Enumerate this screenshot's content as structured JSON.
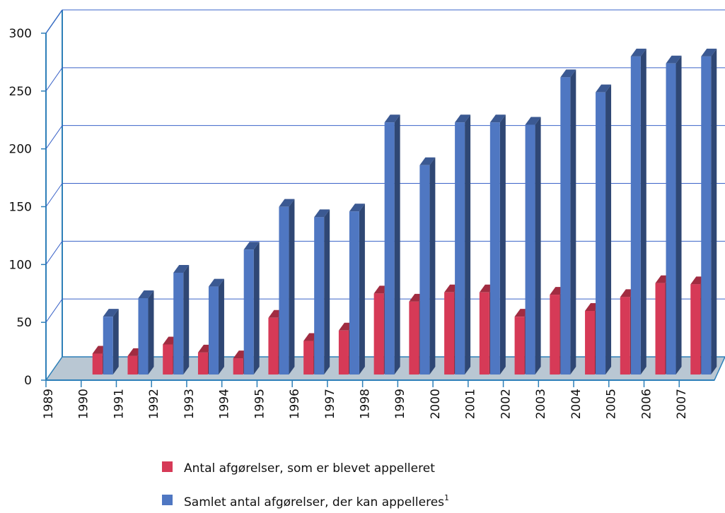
{
  "chart_data": {
    "type": "bar3d",
    "categories": [
      "1989",
      "1990",
      "1991",
      "1992",
      "1993",
      "1994",
      "1995",
      "1996",
      "1997",
      "1998",
      "1999",
      "2000",
      "2001",
      "2002",
      "2003",
      "2004",
      "2005",
      "2006",
      "2007"
    ],
    "series": [
      {
        "name": "Antal afgørelser, som er blevet appelleret",
        "color": "#d63a57",
        "values": [
          null,
          18,
          16,
          26,
          19,
          14,
          49,
          29,
          38,
          70,
          63,
          71,
          71,
          50,
          69,
          55,
          67,
          79,
          78
        ]
      },
      {
        "name": "Samlet antal afgørelser, der kan appelleres",
        "color": "#4f77c2",
        "values": [
          null,
          50,
          66,
          88,
          76,
          108,
          145,
          136,
          141,
          218,
          181,
          218,
          218,
          216,
          257,
          244,
          275,
          269,
          275
        ]
      }
    ],
    "legend_note": "1",
    "ylim": [
      0,
      300
    ],
    "yticks": [
      0,
      50,
      100,
      150,
      200,
      250,
      300
    ],
    "grid": true
  }
}
